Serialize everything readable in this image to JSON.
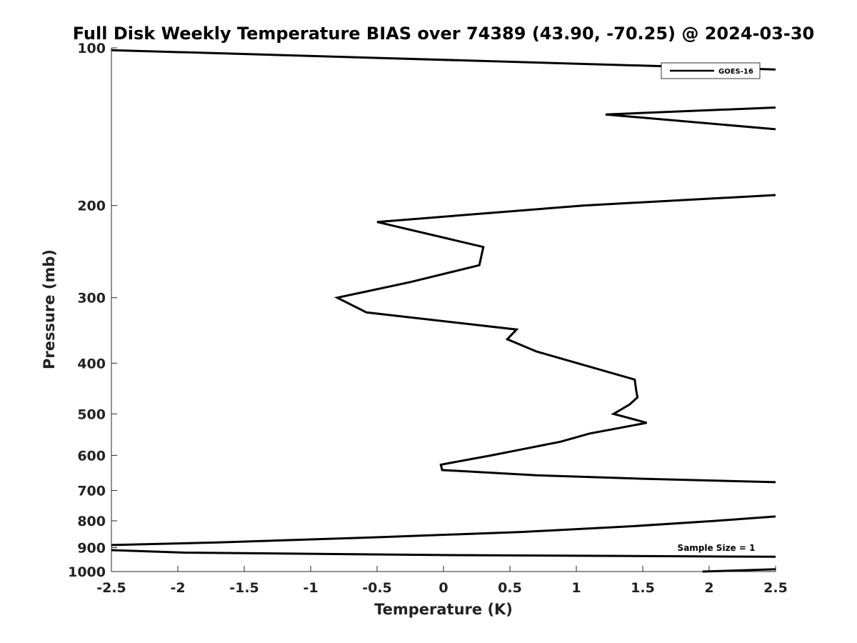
{
  "chart_data": {
    "type": "line",
    "title": "Full Disk Weekly Temperature BIAS over 74389 (43.90, -70.25) @ 2024-03-30",
    "xlabel": "Temperature (K)",
    "ylabel": "Pressure (mb)",
    "xlim": [
      -2.5,
      2.5
    ],
    "ylim": [
      100,
      1000
    ],
    "y_scale": "log",
    "y_reversed": true,
    "x_ticks": [
      -2.5,
      -2,
      -1.5,
      -1,
      -0.5,
      0,
      0.5,
      1,
      1.5,
      2,
      2.5
    ],
    "x_tick_labels": [
      "-2.5",
      "-2",
      "-1.5",
      "-1",
      "-0.5",
      "0",
      "0.5",
      "1",
      "1.5",
      "2",
      "2.5"
    ],
    "y_ticks": [
      100,
      200,
      300,
      400,
      500,
      600,
      700,
      800,
      900,
      1000
    ],
    "y_tick_labels": [
      "100",
      "200",
      "300",
      "400",
      "500",
      "600",
      "700",
      "800",
      "900",
      "1000"
    ],
    "grid": false,
    "legend_position": "top-right",
    "annotation": "Sample Size = 1",
    "line_color": "#000000",
    "series": [
      {
        "name": "GOES-16",
        "points": [
          [
            -2.5,
            101
          ],
          [
            2.5,
            110
          ],
          [
            null,
            null
          ],
          [
            2.5,
            130
          ],
          [
            1.22,
            134
          ],
          [
            2.5,
            143
          ],
          [
            null,
            null
          ],
          [
            2.5,
            191
          ],
          [
            1.05,
            200
          ],
          [
            -0.5,
            215
          ],
          [
            0.3,
            240
          ],
          [
            0.27,
            260
          ],
          [
            -0.25,
            280
          ],
          [
            -0.8,
            300
          ],
          [
            -0.58,
            320
          ],
          [
            0.55,
            345
          ],
          [
            0.48,
            360
          ],
          [
            0.7,
            380
          ],
          [
            1.44,
            430
          ],
          [
            1.45,
            450
          ],
          [
            1.46,
            465
          ],
          [
            1.4,
            480
          ],
          [
            1.28,
            500
          ],
          [
            1.53,
            520
          ],
          [
            1.1,
            545
          ],
          [
            0.88,
            565
          ],
          [
            0.58,
            585
          ],
          [
            0.36,
            600
          ],
          [
            -0.02,
            625
          ],
          [
            -0.01,
            640
          ],
          [
            0.7,
            655
          ],
          [
            1.5,
            665
          ],
          [
            2.5,
            675
          ],
          [
            null,
            null
          ],
          [
            2.5,
            785
          ],
          [
            2.05,
            800
          ],
          [
            1.4,
            820
          ],
          [
            0.6,
            840
          ],
          [
            -0.5,
            860
          ],
          [
            -1.7,
            880
          ],
          [
            -2.5,
            890
          ],
          [
            null,
            null
          ],
          [
            -2.5,
            910
          ],
          [
            -1.95,
            920
          ],
          [
            0,
            930
          ],
          [
            2.5,
            937
          ],
          [
            null,
            null
          ],
          [
            1.95,
            1000
          ],
          [
            2.5,
            990
          ]
        ]
      }
    ]
  }
}
